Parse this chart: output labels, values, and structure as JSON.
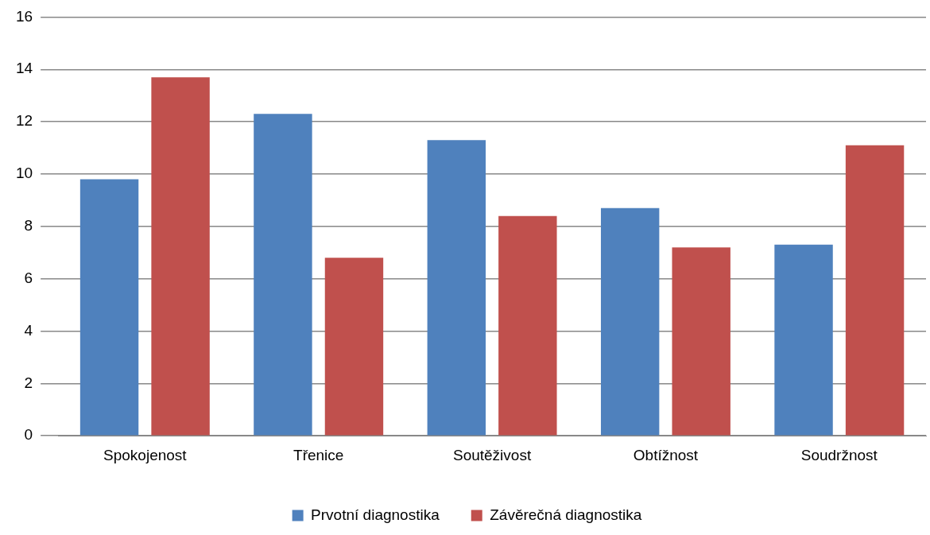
{
  "chart_data": {
    "type": "bar",
    "categories": [
      "Spokojenost",
      "Třenice",
      "Soutěživost",
      "Obtížnost",
      "Soudržnost"
    ],
    "series": [
      {
        "name": "Prvotní diagnostika",
        "color": "#4f81bd",
        "values": [
          9.8,
          12.3,
          11.3,
          8.7,
          7.3
        ]
      },
      {
        "name": "Závěrečná diagnostika",
        "color": "#c0504d",
        "values": [
          13.7,
          6.8,
          8.4,
          7.2,
          11.1
        ]
      }
    ],
    "ylim": [
      0,
      16
    ],
    "yticks": [
      0,
      2,
      4,
      6,
      8,
      10,
      12,
      14,
      16
    ],
    "grid": "y",
    "legend": "bottom"
  }
}
